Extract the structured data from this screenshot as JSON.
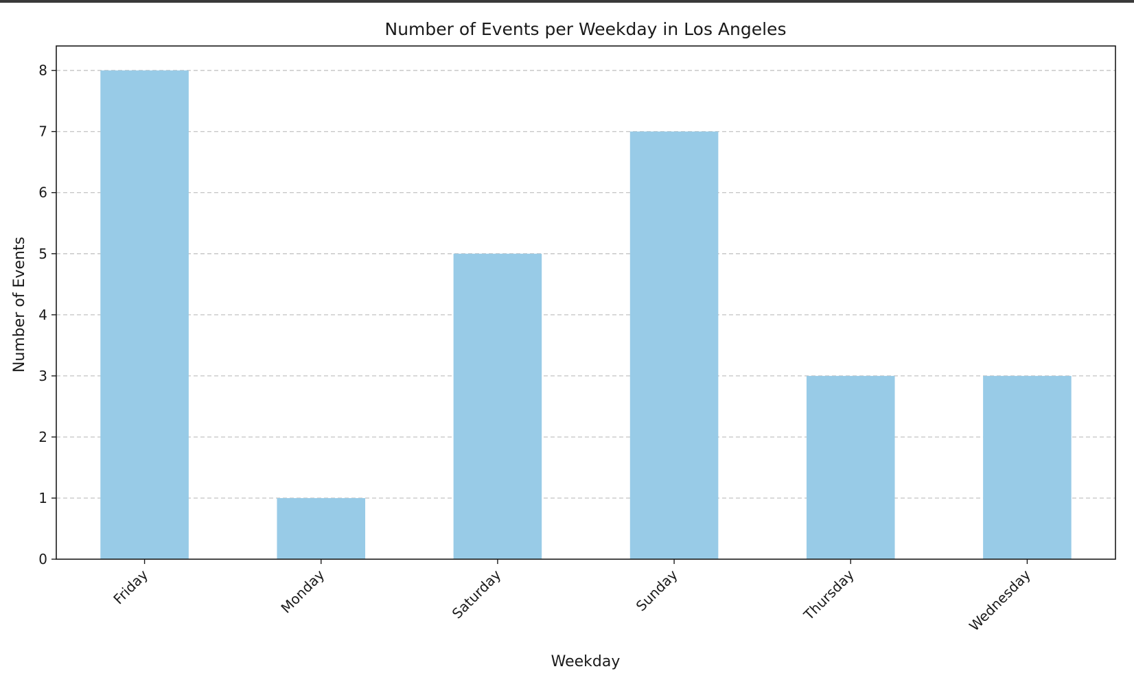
{
  "chart_data": {
    "type": "bar",
    "title": "Number of Events per Weekday in Los Angeles",
    "xlabel": "Weekday",
    "ylabel": "Number of Events",
    "categories": [
      "Friday",
      "Monday",
      "Saturday",
      "Sunday",
      "Thursday",
      "Wednesday"
    ],
    "values": [
      8,
      1,
      5,
      7,
      3,
      3
    ],
    "ylim": [
      0,
      8.4
    ],
    "yticks": [
      "0",
      "1",
      "2",
      "3",
      "4",
      "5",
      "6",
      "7",
      "8"
    ],
    "grid": "y-dashed",
    "bar_color": "#98cbe7",
    "legend": "none"
  }
}
